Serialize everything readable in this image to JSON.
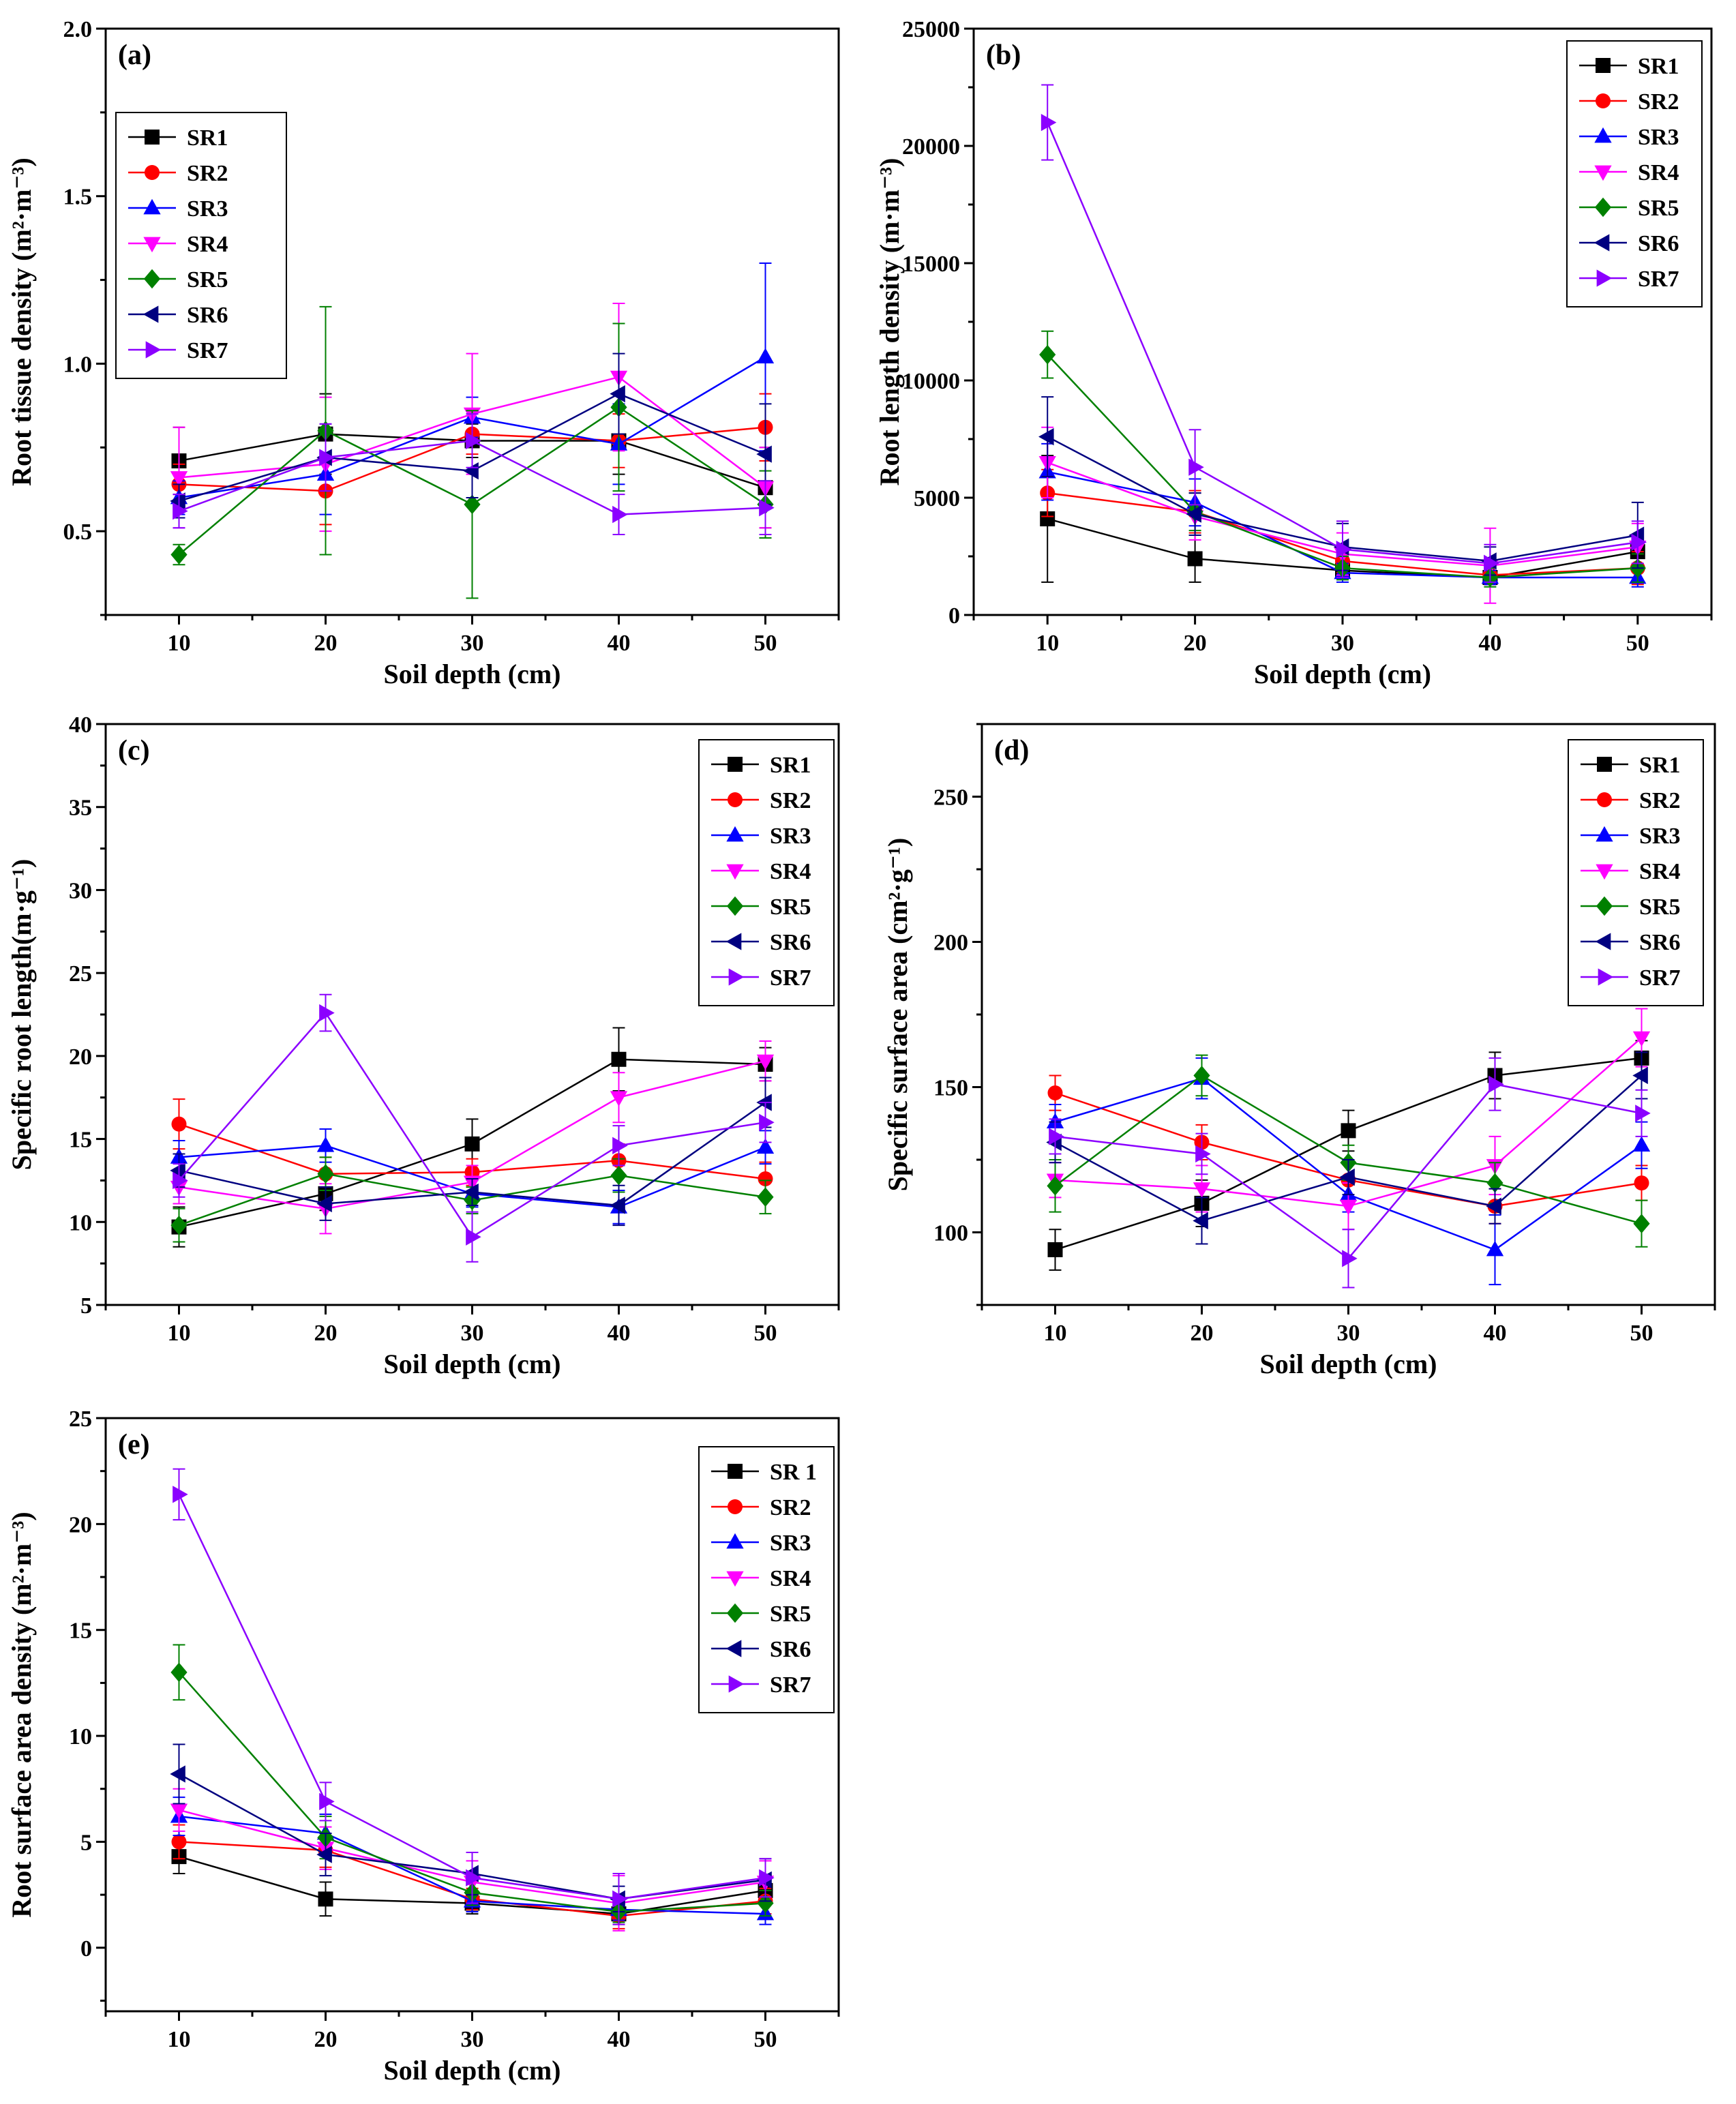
{
  "colors": {
    "SR1": "#000000",
    "SR2": "#ff0000",
    "SR3": "#0000ff",
    "SR4": "#ff00ff",
    "SR5": "#008000",
    "SR6": "#000080",
    "SR7": "#8b00ff"
  },
  "chart_data": [
    {
      "id": "a",
      "type": "line",
      "title": "(a)",
      "xlabel": "Soil depth (cm)",
      "ylabel": "Root tissue density (m²·m⁻³)",
      "x": [
        10,
        20,
        30,
        40,
        50
      ],
      "xlim": [
        5,
        55
      ],
      "ylim": [
        0.25,
        2.0
      ],
      "yticks": [
        0.5,
        1.0,
        1.5,
        2.0
      ],
      "ytick_labels": [
        "0.5",
        "1.0",
        "1.5",
        "2.0"
      ],
      "xticks": [
        10,
        20,
        30,
        40,
        50
      ],
      "xtick_labels": [
        "10",
        "20",
        "30",
        "40",
        "50"
      ],
      "legend_position": "top-left",
      "series": [
        {
          "name": "SR1",
          "marker": "square",
          "values": [
            0.71,
            0.79,
            0.77,
            0.77,
            0.63
          ],
          "errors": [
            0.1,
            0.12,
            0.05,
            0.1,
            0.12
          ]
        },
        {
          "name": "SR2",
          "marker": "circle",
          "values": [
            0.64,
            0.62,
            0.79,
            0.77,
            0.81
          ],
          "errors": [
            0.06,
            0.1,
            0.06,
            0.08,
            0.1
          ]
        },
        {
          "name": "SR3",
          "marker": "triangle-up",
          "values": [
            0.6,
            0.67,
            0.84,
            0.76,
            1.02
          ],
          "errors": [
            0.05,
            0.12,
            0.06,
            0.12,
            0.28
          ]
        },
        {
          "name": "SR4",
          "marker": "triangle-down",
          "values": [
            0.66,
            0.7,
            0.85,
            0.96,
            0.63
          ],
          "errors": [
            0.15,
            0.2,
            0.18,
            0.22,
            0.12
          ]
        },
        {
          "name": "SR5",
          "marker": "diamond",
          "values": [
            0.43,
            0.8,
            0.58,
            0.87,
            0.58
          ],
          "errors": [
            0.03,
            0.37,
            0.28,
            0.25,
            0.1
          ]
        },
        {
          "name": "SR6",
          "marker": "triangle-left",
          "values": [
            0.59,
            0.72,
            0.68,
            0.91,
            0.73
          ],
          "errors": [
            0.05,
            0.1,
            0.08,
            0.12,
            0.15
          ]
        },
        {
          "name": "SR7",
          "marker": "triangle-right",
          "values": [
            0.56,
            0.72,
            0.77,
            0.55,
            0.57
          ],
          "errors": [
            0.05,
            0.1,
            0.08,
            0.06,
            0.08
          ]
        }
      ]
    },
    {
      "id": "b",
      "type": "line",
      "title": "(b)",
      "xlabel": "Soil depth (cm)",
      "ylabel": "Root length density (m·m⁻³)",
      "x": [
        10,
        20,
        30,
        40,
        50
      ],
      "xlim": [
        5,
        55
      ],
      "ylim": [
        0,
        25000
      ],
      "yticks": [
        0,
        5000,
        10000,
        15000,
        20000,
        25000
      ],
      "ytick_labels": [
        "0",
        "5000",
        "10000",
        "15000",
        "20000",
        "25000"
      ],
      "xticks": [
        10,
        20,
        30,
        40,
        50
      ],
      "xtick_labels": [
        "10",
        "20",
        "30",
        "40",
        "50"
      ],
      "legend_position": "top-right",
      "series": [
        {
          "name": "SR1",
          "marker": "square",
          "values": [
            4100,
            2400,
            1900,
            1600,
            2700
          ],
          "errors": [
            2700,
            1000,
            300,
            300,
            600
          ]
        },
        {
          "name": "SR2",
          "marker": "circle",
          "values": [
            5200,
            4400,
            2300,
            1700,
            2000
          ],
          "errors": [
            1000,
            900,
            500,
            400,
            700
          ]
        },
        {
          "name": "SR3",
          "marker": "triangle-up",
          "values": [
            6100,
            4800,
            1800,
            1600,
            1600
          ],
          "errors": [
            1200,
            1000,
            400,
            300,
            400
          ]
        },
        {
          "name": "SR4",
          "marker": "triangle-down",
          "values": [
            6500,
            4200,
            2600,
            2100,
            2900
          ],
          "errors": [
            1500,
            1000,
            900,
            1600,
            1000
          ]
        },
        {
          "name": "SR5",
          "marker": "diamond",
          "values": [
            11100,
            4400,
            2000,
            1600,
            2000
          ],
          "errors": [
            1000,
            800,
            500,
            400,
            600
          ]
        },
        {
          "name": "SR6",
          "marker": "triangle-left",
          "values": [
            7600,
            4300,
            2900,
            2300,
            3400
          ],
          "errors": [
            1700,
            900,
            1000,
            600,
            1400
          ]
        },
        {
          "name": "SR7",
          "marker": "triangle-right",
          "values": [
            21000,
            6300,
            2800,
            2200,
            3100
          ],
          "errors": [
            1600,
            1600,
            1200,
            800,
            900
          ]
        }
      ]
    },
    {
      "id": "c",
      "type": "line",
      "title": "(c)",
      "xlabel": "Soil depth (cm)",
      "ylabel": "Specific root length(m·g⁻¹)",
      "x": [
        10,
        20,
        30,
        40,
        50
      ],
      "xlim": [
        5,
        55
      ],
      "ylim": [
        5,
        40
      ],
      "yticks": [
        5,
        10,
        15,
        20,
        25,
        30,
        35,
        40
      ],
      "ytick_labels": [
        "5",
        "10",
        "15",
        "20",
        "25",
        "30",
        "35",
        "40"
      ],
      "xticks": [
        10,
        20,
        30,
        40,
        50
      ],
      "xtick_labels": [
        "10",
        "20",
        "30",
        "40",
        "50"
      ],
      "legend_position": "top-right",
      "series": [
        {
          "name": "SR1",
          "marker": "square",
          "values": [
            9.7,
            11.7,
            14.7,
            19.8,
            19.5
          ],
          "errors": [
            1.2,
            1.0,
            1.5,
            1.9,
            1.0
          ]
        },
        {
          "name": "SR2",
          "marker": "circle",
          "values": [
            15.9,
            12.9,
            13.0,
            13.7,
            12.6
          ],
          "errors": [
            1.5,
            1.0,
            0.8,
            1.0,
            1.0
          ]
        },
        {
          "name": "SR3",
          "marker": "triangle-up",
          "values": [
            13.9,
            14.6,
            11.7,
            10.9,
            14.5
          ],
          "errors": [
            1.0,
            1.0,
            0.8,
            1.0,
            1.0
          ]
        },
        {
          "name": "SR4",
          "marker": "triangle-down",
          "values": [
            12.1,
            10.8,
            12.4,
            17.5,
            19.7
          ],
          "errors": [
            1.0,
            1.5,
            1.0,
            1.5,
            1.2
          ]
        },
        {
          "name": "SR5",
          "marker": "diamond",
          "values": [
            9.8,
            12.9,
            11.3,
            12.8,
            11.5
          ],
          "errors": [
            1.0,
            1.0,
            0.8,
            1.0,
            1.0
          ]
        },
        {
          "name": "SR6",
          "marker": "triangle-left",
          "values": [
            13.1,
            11.1,
            11.8,
            11.0,
            17.2
          ],
          "errors": [
            1.0,
            1.0,
            0.8,
            1.2,
            1.5
          ]
        },
        {
          "name": "SR7",
          "marker": "triangle-right",
          "values": [
            12.5,
            22.6,
            9.1,
            14.6,
            16.0
          ],
          "errors": [
            1.0,
            1.1,
            1.5,
            1.2,
            1.2
          ]
        }
      ]
    },
    {
      "id": "d",
      "type": "line",
      "title": "(d)",
      "xlabel": "Soil depth (cm)",
      "ylabel": "Specific surface area (cm²·g⁻¹)",
      "x": [
        10,
        20,
        30,
        40,
        50
      ],
      "xlim": [
        5,
        55
      ],
      "ylim": [
        75,
        275
      ],
      "yticks": [
        100,
        150,
        200,
        250
      ],
      "ytick_labels": [
        "100",
        "150",
        "200",
        "250"
      ],
      "xticks": [
        10,
        20,
        30,
        40,
        50
      ],
      "xtick_labels": [
        "10",
        "20",
        "30",
        "40",
        "50"
      ],
      "legend_position": "top-right",
      "series": [
        {
          "name": "SR1",
          "marker": "square",
          "values": [
            94,
            110,
            135,
            154,
            160
          ],
          "errors": [
            7,
            8,
            7,
            8,
            6
          ]
        },
        {
          "name": "SR2",
          "marker": "circle",
          "values": [
            148,
            131,
            118,
            109,
            117
          ],
          "errors": [
            6,
            6,
            6,
            6,
            6
          ]
        },
        {
          "name": "SR3",
          "marker": "triangle-up",
          "values": [
            138,
            153,
            113,
            94,
            130
          ],
          "errors": [
            6,
            7,
            6,
            12,
            8
          ]
        },
        {
          "name": "SR4",
          "marker": "triangle-down",
          "values": [
            118,
            115,
            109,
            123,
            167
          ],
          "errors": [
            6,
            8,
            8,
            10,
            10
          ]
        },
        {
          "name": "SR5",
          "marker": "diamond",
          "values": [
            116,
            154,
            124,
            117,
            103
          ],
          "errors": [
            9,
            7,
            6,
            7,
            8
          ]
        },
        {
          "name": "SR6",
          "marker": "triangle-left",
          "values": [
            131,
            104,
            119,
            109,
            154
          ],
          "errors": [
            7,
            8,
            6,
            6,
            8
          ]
        },
        {
          "name": "SR7",
          "marker": "triangle-right",
          "values": [
            133,
            127,
            91,
            151,
            141
          ],
          "errors": [
            6,
            7,
            10,
            9,
            8
          ]
        }
      ]
    },
    {
      "id": "e",
      "type": "line",
      "title": "(e)",
      "xlabel": "Soil depth (cm)",
      "ylabel": "Root surface area density (m²·m⁻³)",
      "x": [
        10,
        20,
        30,
        40,
        50
      ],
      "xlim": [
        5,
        55
      ],
      "ylim": [
        -3,
        25
      ],
      "yticks": [
        0,
        5,
        10,
        15,
        20,
        25
      ],
      "ytick_labels": [
        "0",
        "5",
        "10",
        "15",
        "20",
        "25"
      ],
      "xticks": [
        10,
        20,
        30,
        40,
        50
      ],
      "xtick_labels": [
        "10",
        "20",
        "30",
        "40",
        "50"
      ],
      "legend_position": "top-right",
      "series": [
        {
          "name": "SR 1",
          "color_key": "SR1",
          "marker": "square",
          "values": [
            4.3,
            2.3,
            2.1,
            1.6,
            2.7
          ],
          "errors": [
            0.8,
            0.8,
            0.5,
            0.5,
            0.6
          ]
        },
        {
          "name": "SR2",
          "color_key": "SR2",
          "marker": "circle",
          "values": [
            5.0,
            4.6,
            2.3,
            1.5,
            2.2
          ],
          "errors": [
            0.8,
            0.8,
            0.5,
            0.6,
            0.6
          ]
        },
        {
          "name": "SR3",
          "color_key": "SR3",
          "marker": "triangle-up",
          "values": [
            6.2,
            5.4,
            2.2,
            1.8,
            1.6
          ],
          "errors": [
            0.9,
            0.9,
            0.5,
            0.5,
            0.5
          ]
        },
        {
          "name": "SR4",
          "color_key": "SR4",
          "marker": "triangle-down",
          "values": [
            6.5,
            4.7,
            3.1,
            2.1,
            3.1
          ],
          "errors": [
            1.0,
            1.0,
            1.0,
            1.3,
            1.0
          ]
        },
        {
          "name": "SR5",
          "color_key": "SR5",
          "marker": "diamond",
          "values": [
            13.0,
            5.2,
            2.6,
            1.7,
            2.1
          ],
          "errors": [
            1.3,
            1.0,
            0.6,
            0.5,
            0.6
          ]
        },
        {
          "name": "SR6",
          "color_key": "SR6",
          "marker": "triangle-left",
          "values": [
            8.2,
            4.4,
            3.5,
            2.3,
            3.2
          ],
          "errors": [
            1.4,
            1.0,
            1.0,
            0.6,
            1.0
          ]
        },
        {
          "name": "SR7",
          "color_key": "SR7",
          "marker": "triangle-right",
          "values": [
            21.4,
            6.9,
            3.3,
            2.3,
            3.3
          ],
          "errors": [
            1.2,
            0.9,
            1.2,
            1.2,
            0.9
          ]
        }
      ]
    }
  ]
}
